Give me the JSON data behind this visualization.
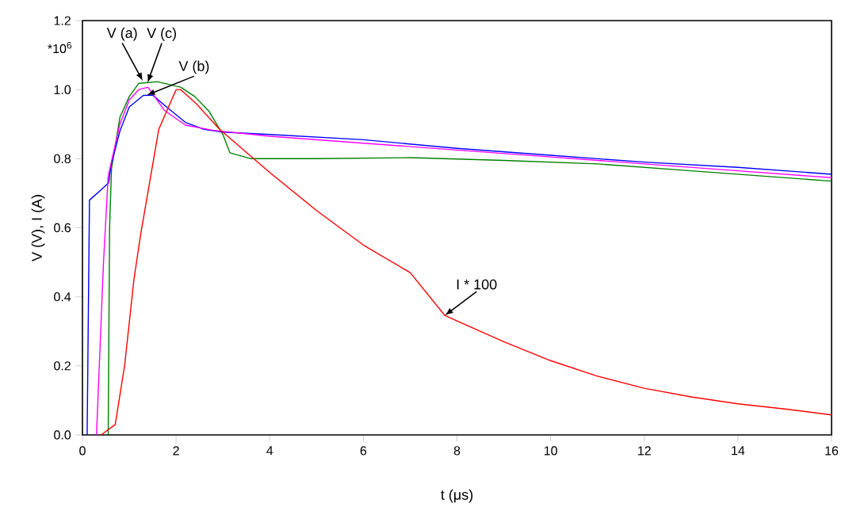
{
  "chart_data": {
    "type": "line",
    "xlabel": "t (μs)",
    "ylabel": "V (V), I (A)",
    "xlim": [
      0,
      16
    ],
    "ylim": [
      0,
      1.2
    ],
    "xticks": [
      0,
      2,
      4,
      6,
      8,
      10,
      12,
      14,
      16
    ],
    "yticks": [
      {
        "value": 0,
        "label": "0.0"
      },
      {
        "value": 0.2,
        "label": "0.2"
      },
      {
        "value": 0.4,
        "label": "0.4"
      },
      {
        "value": 0.6,
        "label": "0.6"
      },
      {
        "value": 0.8,
        "label": "0.8"
      },
      {
        "value": 1.0,
        "label": "1.0"
      },
      {
        "value": 1.2,
        "label": "1.2"
      }
    ],
    "line_style": "solid",
    "series": [
      {
        "color": "#008000",
        "x": [
          0.55,
          0.58,
          0.62,
          0.8,
          1.0,
          1.2,
          1.6,
          2.1,
          2.4,
          2.7,
          3.0,
          3.15,
          3.6,
          5,
          7,
          9,
          11,
          13,
          14.5,
          16
        ],
        "values": [
          0,
          0.6,
          0.77,
          0.92,
          0.98,
          1.018,
          1.023,
          1.007,
          0.98,
          0.938,
          0.87,
          0.817,
          0.8,
          0.8,
          0.803,
          0.795,
          0.785,
          0.765,
          0.75,
          0.735
        ]
      },
      {
        "color": "#0000ff",
        "x": [
          0.1,
          0.15,
          0.4,
          0.56,
          0.61,
          0.8,
          1.0,
          1.3,
          1.5,
          1.75,
          2.2,
          2.6,
          3.0,
          4,
          6,
          8,
          10,
          12,
          14,
          16
        ],
        "values": [
          0,
          0.68,
          0.71,
          0.73,
          0.78,
          0.88,
          0.95,
          0.983,
          0.984,
          0.955,
          0.905,
          0.885,
          0.877,
          0.87,
          0.855,
          0.83,
          0.81,
          0.79,
          0.775,
          0.755
        ]
      },
      {
        "color": "#ff00ff",
        "x": [
          0.3,
          0.45,
          0.55,
          0.6,
          0.8,
          1.0,
          1.2,
          1.4,
          1.75,
          2.2,
          2.8,
          4,
          6,
          8,
          10,
          12,
          14,
          16
        ],
        "values": [
          0,
          0.5,
          0.75,
          0.78,
          0.9,
          0.97,
          1.0,
          1.007,
          0.94,
          0.897,
          0.882,
          0.865,
          0.845,
          0.825,
          0.805,
          0.785,
          0.765,
          0.745
        ]
      },
      {
        "color": "#ff0000",
        "x": [
          0.4,
          0.7,
          0.9,
          1.1,
          1.24,
          1.63,
          2.0,
          2.1,
          2.42,
          2.93,
          3.71,
          4,
          5,
          6,
          7,
          7.74,
          8,
          9,
          10,
          11,
          12,
          13,
          14,
          15,
          16
        ],
        "values": [
          0,
          0.03,
          0.2,
          0.45,
          0.578,
          0.885,
          1.0,
          1.0,
          0.961,
          0.885,
          0.794,
          0.76,
          0.65,
          0.55,
          0.47,
          0.346,
          0.33,
          0.27,
          0.215,
          0.17,
          0.135,
          0.11,
          0.09,
          0.075,
          0.058
        ]
      }
    ],
    "annotations": [
      "*10$^{6}$",
      {
        "text": "V (a)",
        "x": 1.29,
        "y": 1.025
      },
      {
        "text": "V (c)",
        "x": 1.39,
        "y": 1.02
      },
      {
        "text": "V (b)",
        "x": 1.37,
        "y": 0.984
      },
      {
        "text": "I * 100",
        "x": 7.74,
        "y": 0.346
      }
    ]
  }
}
